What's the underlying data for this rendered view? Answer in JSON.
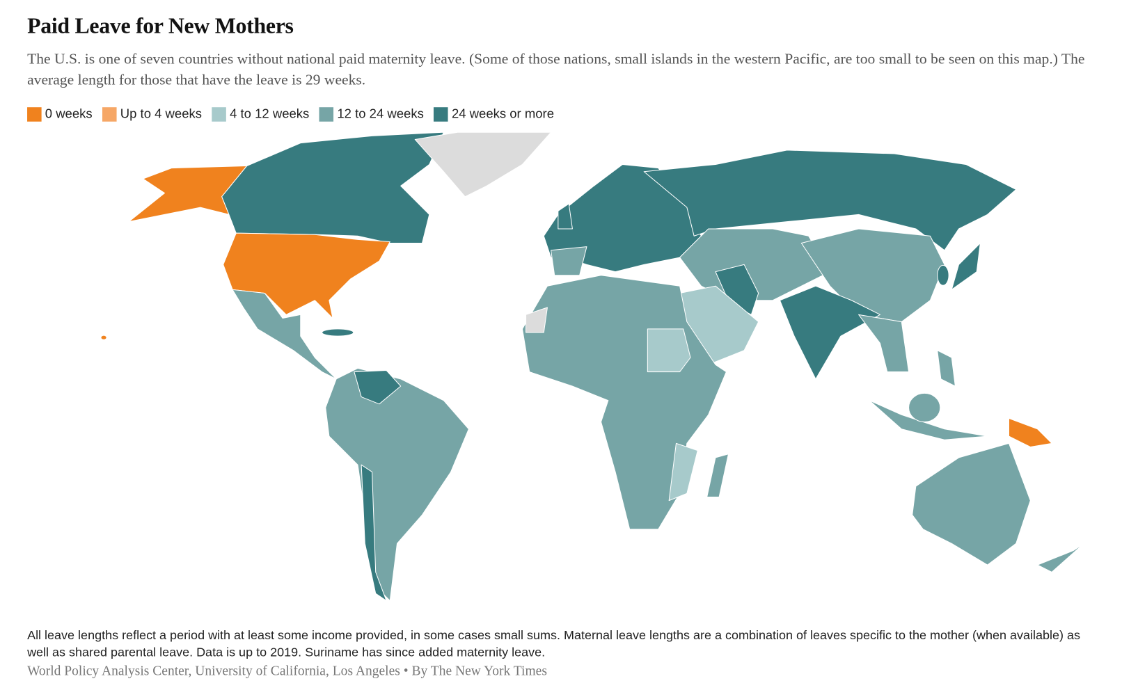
{
  "header": {
    "title": "Paid Leave for New Mothers",
    "subtitle": "The U.S. is one of seven countries without national paid maternity leave. (Some of those nations, small islands in the western Pacific, are too small to be seen on this map.) The average length for those that have the leave is 29 weeks."
  },
  "legend": [
    {
      "label": "0 weeks",
      "color": "#f0821e"
    },
    {
      "label": "Up to 4 weeks",
      "color": "#f6a766"
    },
    {
      "label": "4 to 12 weeks",
      "color": "#a7cacb"
    },
    {
      "label": "12 to 24 weeks",
      "color": "#76a5a6"
    },
    {
      "label": "24 weeks or more",
      "color": "#377b7f"
    }
  ],
  "footer": {
    "note": "All leave lengths reflect a period with at least some income provided, in some cases small sums. Maternal leave lengths are a combination of leaves specific to the mother (when available) as well as shared parental leave. Data is up to 2019. Suriname has since added maternity leave.",
    "source": "World Policy Analysis Center, University of California, Los Angeles • By The New York Times"
  }
}
